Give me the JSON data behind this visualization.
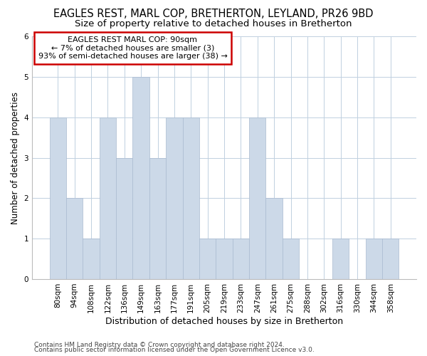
{
  "title": "EAGLES REST, MARL COP, BRETHERTON, LEYLAND, PR26 9BD",
  "subtitle": "Size of property relative to detached houses in Bretherton",
  "xlabel": "Distribution of detached houses by size in Bretherton",
  "ylabel": "Number of detached properties",
  "categories": [
    "80sqm",
    "94sqm",
    "108sqm",
    "122sqm",
    "136sqm",
    "149sqm",
    "163sqm",
    "177sqm",
    "191sqm",
    "205sqm",
    "219sqm",
    "233sqm",
    "247sqm",
    "261sqm",
    "275sqm",
    "288sqm",
    "302sqm",
    "316sqm",
    "330sqm",
    "344sqm",
    "358sqm"
  ],
  "values": [
    4,
    2,
    1,
    4,
    3,
    5,
    3,
    4,
    4,
    1,
    1,
    1,
    4,
    2,
    1,
    0,
    0,
    1,
    0,
    1,
    1
  ],
  "bar_color": "#ccd9e8",
  "bar_edge_color": "#aabbd0",
  "annotation_text": "EAGLES REST MARL COP: 90sqm\n← 7% of detached houses are smaller (3)\n93% of semi-detached houses are larger (38) →",
  "annotation_box_color": "white",
  "annotation_box_edge": "#cc0000",
  "ylim": [
    0,
    6
  ],
  "yticks": [
    0,
    1,
    2,
    3,
    4,
    5,
    6
  ],
  "footer_line1": "Contains HM Land Registry data © Crown copyright and database right 2024.",
  "footer_line2": "Contains public sector information licensed under the Open Government Licence v3.0.",
  "bg_color": "white",
  "grid_color": "#c0d0e0",
  "title_fontsize": 10.5,
  "subtitle_fontsize": 9.5,
  "xlabel_fontsize": 9,
  "ylabel_fontsize": 8.5,
  "tick_fontsize": 7.5,
  "footer_fontsize": 6.5,
  "annot_fontsize": 8
}
